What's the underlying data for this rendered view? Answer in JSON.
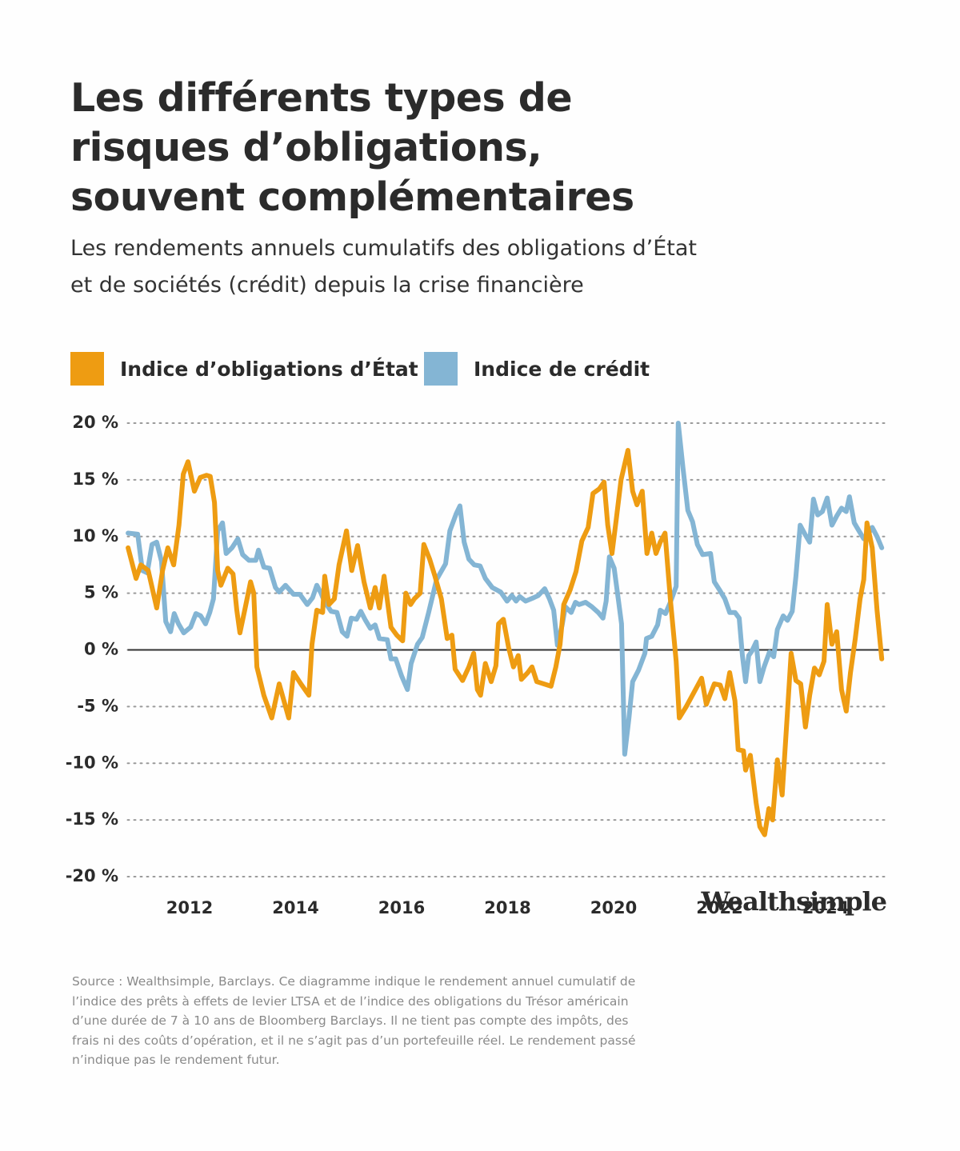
{
  "chart_data": {
    "type": "line",
    "title": "Les différents types de risques d’obligations, souvent complémentaires",
    "subtitle": "Les rendements annuels cumulatifs des obligations d’État et de sociétés (crédit) depuis la crise financière",
    "source": "Source : Wealthsimple, Barclays. Ce diagramme indique le rendement annuel cumulatif de l’indice des prêts à effets de levier LTSA et de l’indice des obligations du Trésor américain d’une durée de 7 à 10 ans de Bloomberg Barclays. Il ne tient pas compte des impôts, des frais ni des coûts d’opération, et il ne s’agit pas d’un portefeuille réel. Le rendement passé n’indique pas le rendement futur.",
    "brand": "Wealthsimple",
    "xlim": [
      2010.8,
      2025.2
    ],
    "xticks": [
      2012,
      2014,
      2016,
      2018,
      2020,
      2022,
      2024
    ],
    "ylim": [
      -20,
      20
    ],
    "yticks": [
      {
        "value": 20,
        "label": "20 %"
      },
      {
        "value": 15,
        "label": "15 %"
      },
      {
        "value": 10,
        "label": "10 %"
      },
      {
        "value": 5,
        "label": "5 %"
      },
      {
        "value": 0,
        "label": "0 %"
      },
      {
        "value": -5,
        "label": "-5 %"
      },
      {
        "value": -10,
        "label": "-10 %"
      },
      {
        "value": -15,
        "label": "-15 %"
      },
      {
        "value": -20,
        "label": "-20 %"
      }
    ],
    "grid": true,
    "series": [
      {
        "name": "Indice d’obligations d’État",
        "color": "#ee9c12",
        "x": [
          2010.84,
          2010.99,
          2011.08,
          2011.22,
          2011.38,
          2011.49,
          2011.59,
          2011.7,
          2011.8,
          2011.88,
          2011.97,
          2012.09,
          2012.2,
          2012.32,
          2012.39,
          2012.47,
          2012.53,
          2012.59,
          2012.72,
          2012.82,
          2012.89,
          2012.95,
          2013.04,
          2013.15,
          2013.21,
          2013.27,
          2013.4,
          2013.55,
          2013.69,
          2013.87,
          2013.96,
          2014.1,
          2014.25,
          2014.31,
          2014.4,
          2014.51,
          2014.55,
          2014.63,
          2014.73,
          2014.82,
          2014.96,
          2015.06,
          2015.17,
          2015.29,
          2015.41,
          2015.5,
          2015.58,
          2015.67,
          2015.8,
          2015.91,
          2016.02,
          2016.08,
          2016.17,
          2016.24,
          2016.35,
          2016.42,
          2016.53,
          2016.63,
          2016.75,
          2016.86,
          2016.95,
          2017.01,
          2017.15,
          2017.27,
          2017.36,
          2017.43,
          2017.49,
          2017.58,
          2017.69,
          2017.78,
          2017.83,
          2017.92,
          2018.02,
          2018.11,
          2018.2,
          2018.26,
          2018.38,
          2018.46,
          2018.55,
          2018.82,
          2018.91,
          2018.99,
          2019.06,
          2019.18,
          2019.29,
          2019.4,
          2019.52,
          2019.61,
          2019.73,
          2019.82,
          2019.89,
          2019.97,
          2020.05,
          2020.14,
          2020.27,
          2020.36,
          2020.44,
          2020.54,
          2020.63,
          2020.72,
          2020.8,
          2020.88,
          2020.97,
          2021.07,
          2021.18,
          2021.24,
          2021.37,
          2021.51,
          2021.66,
          2021.75,
          2021.9,
          2022.01,
          2022.1,
          2022.19,
          2022.29,
          2022.35,
          2022.45,
          2022.49,
          2022.58,
          2022.69,
          2022.76,
          2022.85,
          2022.93,
          2023.0,
          2023.09,
          2023.18,
          2023.28,
          2023.35,
          2023.44,
          2023.53,
          2023.62,
          2023.7,
          2023.79,
          2023.88,
          2023.97,
          2024.03,
          2024.12,
          2024.21,
          2024.3,
          2024.39,
          2024.47,
          2024.56,
          2024.65,
          2024.72,
          2024.78,
          2024.88,
          2024.97,
          2025.06
        ],
        "values": [
          9,
          6.3,
          7.5,
          7,
          3.7,
          7,
          9,
          7.5,
          11,
          15.5,
          16.6,
          14,
          15.2,
          15.4,
          15.3,
          13,
          7,
          5.7,
          7.2,
          6.7,
          3.5,
          1.5,
          3.5,
          6,
          5,
          -1.5,
          -4,
          -6,
          -3,
          -6,
          -2,
          -3,
          -4,
          0.5,
          3.5,
          3.3,
          6.5,
          4,
          4.5,
          7.5,
          10.5,
          7,
          9.2,
          6,
          3.7,
          5.5,
          3.7,
          6.5,
          2,
          1.3,
          0.8,
          5,
          4,
          4.5,
          5,
          9.3,
          8,
          6.5,
          4.5,
          1,
          1.3,
          -1.7,
          -2.7,
          -1.5,
          -0.3,
          -3.5,
          -4,
          -1.2,
          -2.8,
          -1.4,
          2.3,
          2.7,
          0.2,
          -1.5,
          -0.5,
          -2.6,
          -2,
          -1.5,
          -2.8,
          -3.2,
          -1.5,
          0.5,
          4,
          5.3,
          6.9,
          9.6,
          10.8,
          13.8,
          14.2,
          14.8,
          11,
          8.5,
          11.5,
          15,
          17.6,
          14,
          12.8,
          14,
          8.5,
          10.3,
          8.5,
          9.5,
          10.3,
          4.5,
          -1,
          -6,
          -5,
          -3.8,
          -2.5,
          -4.8,
          -3,
          -3.1,
          -4.3,
          -2,
          -4.5,
          -8.8,
          -8.9,
          -10.6,
          -9.3,
          -13.5,
          -15.6,
          -16.3,
          -14,
          -15,
          -9.7,
          -12.8,
          -5.5,
          -0.3,
          -2.7,
          -3,
          -6.8,
          -4,
          -1.6,
          -2.2,
          -1,
          4,
          0.5,
          1.6,
          -3.5,
          -5.4,
          -2,
          1,
          4.5,
          6.2,
          11.2,
          9,
          3.5,
          -0.8
        ]
      },
      {
        "name": "Indice de crédit",
        "color": "#84b5d4",
        "x": [
          2010.84,
          2011.02,
          2011.11,
          2011.2,
          2011.29,
          2011.38,
          2011.47,
          2011.55,
          2011.64,
          2011.71,
          2011.79,
          2011.89,
          2012.02,
          2012.12,
          2012.21,
          2012.3,
          2012.38,
          2012.45,
          2012.53,
          2012.62,
          2012.69,
          2012.8,
          2012.91,
          2013.0,
          2013.12,
          2013.25,
          2013.3,
          2013.4,
          2013.51,
          2013.62,
          2013.69,
          2013.81,
          2013.96,
          2014.08,
          2014.22,
          2014.32,
          2014.4,
          2014.48,
          2014.54,
          2014.67,
          2014.78,
          2014.88,
          2014.97,
          2015.05,
          2015.15,
          2015.23,
          2015.32,
          2015.41,
          2015.5,
          2015.58,
          2015.73,
          2015.8,
          2015.89,
          2016.0,
          2016.11,
          2016.18,
          2016.3,
          2016.39,
          2016.51,
          2016.66,
          2016.83,
          2016.91,
          2017.03,
          2017.1,
          2017.18,
          2017.27,
          2017.37,
          2017.48,
          2017.58,
          2017.71,
          2017.87,
          2017.99,
          2018.08,
          2018.16,
          2018.23,
          2018.34,
          2018.49,
          2018.58,
          2018.7,
          2018.79,
          2018.87,
          2018.94,
          2019.03,
          2019.09,
          2019.2,
          2019.28,
          2019.35,
          2019.47,
          2019.59,
          2019.71,
          2019.8,
          2019.86,
          2019.92,
          2020.01,
          2020.09,
          2020.15,
          2020.21,
          2020.29,
          2020.36,
          2020.47,
          2020.59,
          2020.62,
          2020.72,
          2020.83,
          2020.88,
          2020.98,
          2021.07,
          2021.18,
          2021.22,
          2021.31,
          2021.4,
          2021.49,
          2021.58,
          2021.68,
          2021.83,
          2021.9,
          2022.01,
          2022.1,
          2022.19,
          2022.29,
          2022.37,
          2022.43,
          2022.49,
          2022.55,
          2022.61,
          2022.69,
          2022.76,
          2022.84,
          2022.94,
          2023.02,
          2023.09,
          2023.2,
          2023.28,
          2023.37,
          2023.44,
          2023.52,
          2023.61,
          2023.7,
          2023.77,
          2023.85,
          2023.94,
          2024.03,
          2024.12,
          2024.21,
          2024.3,
          2024.39,
          2024.45,
          2024.54,
          2024.63,
          2024.72,
          2024.8,
          2024.88,
          2024.97,
          2025.06
        ],
        "values": [
          10.3,
          10.2,
          7,
          6.8,
          9.3,
          9.5,
          7.8,
          2.5,
          1.6,
          3.2,
          2.3,
          1.5,
          2,
          3.2,
          3,
          2.3,
          3.3,
          4.5,
          10.5,
          11.2,
          8.5,
          9,
          9.8,
          8.4,
          7.9,
          7.9,
          8.8,
          7.3,
          7.2,
          5.5,
          5.1,
          5.7,
          4.9,
          4.9,
          4,
          4.6,
          5.7,
          5,
          4.3,
          3.4,
          3.3,
          1.6,
          1.2,
          2.8,
          2.7,
          3.4,
          2.6,
          1.9,
          2.2,
          1,
          0.9,
          -0.8,
          -0.8,
          -2.3,
          -3.5,
          -1.2,
          0.5,
          1.1,
          3.3,
          6.2,
          7.6,
          10.5,
          12,
          12.7,
          9.5,
          8,
          7.5,
          7.4,
          6.3,
          5.5,
          5.1,
          4.3,
          4.8,
          4.3,
          4.7,
          4.3,
          4.6,
          4.8,
          5.4,
          4.5,
          3.5,
          0.4,
          2.2,
          3.8,
          3.3,
          4.2,
          4,
          4.2,
          3.8,
          3.3,
          2.8,
          4.3,
          8.2,
          7.2,
          4.4,
          2.3,
          -9.2,
          -6,
          -2.8,
          -1.8,
          -0.3,
          1,
          1.2,
          2.2,
          3.5,
          3.2,
          4.2,
          5.6,
          20,
          16,
          12.3,
          11.3,
          9.3,
          8.4,
          8.5,
          6,
          5.2,
          4.5,
          3.3,
          3.3,
          2.8,
          -0.5,
          -2.8,
          -0.5,
          -0.1,
          0.7,
          -2.8,
          -1.5,
          -0.2,
          -0.6,
          1.8,
          3,
          2.6,
          3.4,
          6.5,
          11,
          10.2,
          9.5,
          13.3,
          11.9,
          12.2,
          13.4,
          11,
          11.8,
          12.5,
          12.2,
          13.5,
          11.2,
          10.5,
          9.8,
          10.2,
          10.8,
          10,
          9
        ]
      }
    ]
  }
}
